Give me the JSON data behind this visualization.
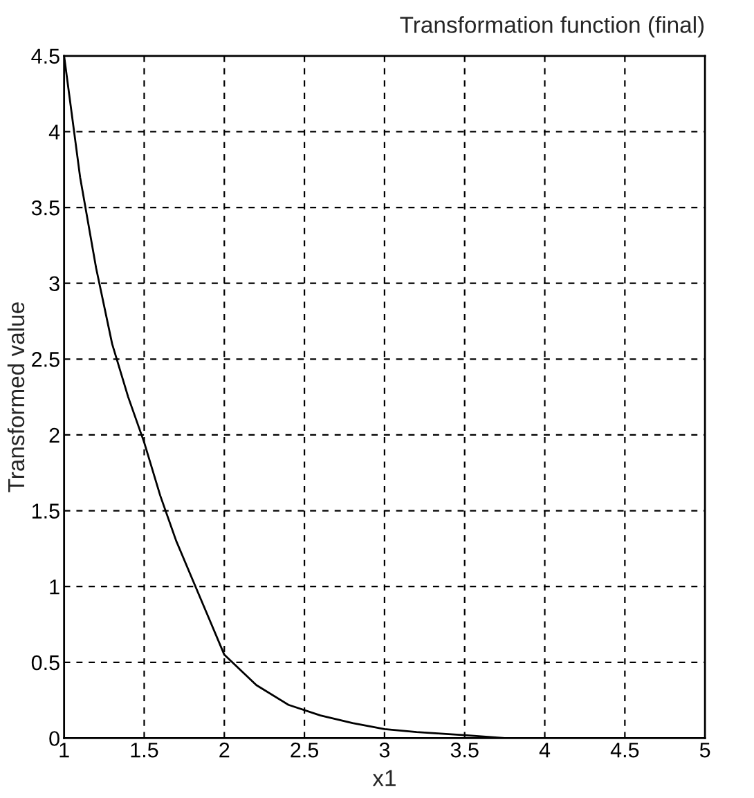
{
  "chart_data": {
    "type": "line",
    "title": "Transformation function (final)",
    "xlabel": "x1",
    "ylabel": "Transformed value",
    "series": [
      {
        "color": "#000000",
        "x": [
          1.0,
          1.1,
          1.2,
          1.3,
          1.4,
          1.5,
          1.6,
          1.7,
          1.8,
          1.9,
          2.0,
          2.2,
          2.4,
          2.6,
          2.8,
          3.0,
          3.2,
          3.5,
          3.75
        ],
        "values": [
          4.5,
          3.7,
          3.1,
          2.6,
          2.25,
          1.95,
          1.6,
          1.3,
          1.05,
          0.8,
          0.55,
          0.35,
          0.22,
          0.15,
          0.1,
          0.06,
          0.04,
          0.02,
          0.0
        ]
      }
    ],
    "xlim": [
      1,
      5
    ],
    "ylim": [
      0,
      4.5
    ],
    "xticks": [
      1,
      1.5,
      2,
      2.5,
      3,
      3.5,
      4,
      4.5,
      5
    ],
    "yticks": [
      0,
      0.5,
      1,
      1.5,
      2,
      2.5,
      3,
      3.5,
      4,
      4.5
    ],
    "grid": true,
    "line_style": "solid",
    "marker": "none",
    "legend": false
  }
}
